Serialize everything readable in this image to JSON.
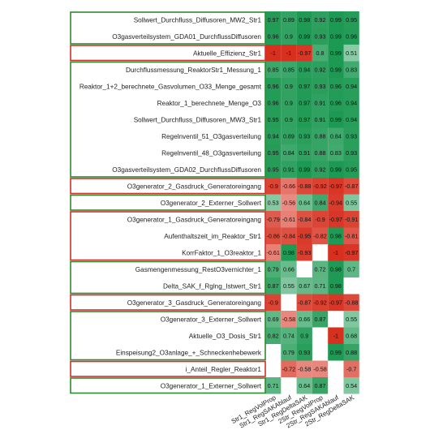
{
  "chart_data": {
    "type": "heatmap",
    "title": "",
    "xlabel": "",
    "ylabel": "",
    "color_scale": {
      "min": -1,
      "max": 1,
      "negative": "#d7301f",
      "zero": "#ffffff",
      "positive": "#1a9850"
    },
    "columns": [
      "Str1_RegVolProp",
      "Str1_RegSAKAblauf",
      "Str1_RegDeltaSAK",
      "2Str_RegVolProp",
      "2Str_RegSAKAblauf",
      "2Str_RegDeltaSAK"
    ],
    "rows": [
      "Sollwert_Durchfluss_Diffusoren_MW2_Str1",
      "O3gasverteilsystem_GDA01_DurchflussDiffusoren",
      "Aktuelle_Effizienz_Str1",
      "Durchflussmessung_ReaktorStr1_Messung_1",
      "Reaktor_1+2_berechnete_Gasvolumen_O33_Menge_gesamt",
      "Reaktor_1_berechnete_Menge_O3",
      "Sollwert_Durchfluss_Diffusoren_MW3_Str1",
      "Regelnventil_51_O3gasverteilung",
      "Regelnventil_48_O3gasverteilung",
      "O3gasverteilsystem_GDA02_DurchflussDiffusoren",
      "O3generator_2_Gasdruck_Generatoreingang",
      "O3generator_2_Externer_Sollwert",
      "O3generator_1_Gasdruck_Generatoreingang",
      "Aufenthaltszeit_im_Reaktor_Str1",
      "KorrFaktor_1_O3reaktor_1",
      "Gasmengenmessung_RestO3vernichter_1",
      "Delta_SAK_f_Rglng_Istwert_Str1",
      "O3generator_3_Gasdruck_Generatoreingang",
      "O3generator_3_Externer_Sollwert",
      "Aktuelle_O3_Dosis_Str1",
      "Einspeisung2_O3anlage_+_Schneckenhebewerk",
      "i_Anteil_Regler_Reaktor1",
      "O3generator_1_Externer_Sollwert"
    ],
    "values": [
      [
        0.97,
        0.89,
        0.98,
        0.92,
        0.99,
        0.95
      ],
      [
        0.96,
        0.9,
        0.99,
        0.93,
        0.99,
        0.96
      ],
      [
        -1,
        -1,
        -0.97,
        0.8,
        0.99,
        0.51
      ],
      [
        0.85,
        0.85,
        0.94,
        0.92,
        0.99,
        0.83
      ],
      [
        0.96,
        0.9,
        0.97,
        0.93,
        0.96,
        0.94
      ],
      [
        0.96,
        0.9,
        0.97,
        0.91,
        0.96,
        0.94
      ],
      [
        0.95,
        0.9,
        0.97,
        0.91,
        0.99,
        0.94
      ],
      [
        0.94,
        0.89,
        0.93,
        0.88,
        0.84,
        0.93
      ],
      [
        0.95,
        0.84,
        0.91,
        0.88,
        0.83,
        0.93
      ],
      [
        0.95,
        0.91,
        0.99,
        0.92,
        0.99,
        0.95
      ],
      [
        -0.9,
        -0.66,
        -0.88,
        -0.92,
        -0.97,
        -0.87
      ],
      [
        0.53,
        -0.56,
        0.64,
        0.84,
        -0.94,
        0.55
      ],
      [
        -0.79,
        -0.61,
        -0.84,
        -0.9,
        -0.97,
        -0.91
      ],
      [
        -0.86,
        -0.84,
        -0.95,
        -0.82,
        0.98,
        -0.81
      ],
      [
        -0.61,
        0.98,
        -0.93,
        null,
        -1,
        -0.97
      ],
      [
        0.79,
        0.66,
        null,
        0.72,
        0.98,
        0.7
      ],
      [
        0.87,
        0.55,
        0.67,
        0.71,
        0.98,
        null
      ],
      [
        -0.9,
        null,
        -0.87,
        -0.92,
        -0.97,
        -0.88
      ],
      [
        0.69,
        -0.58,
        0.66,
        0.87,
        null,
        0.55
      ],
      [
        0.82,
        0.74,
        0.9,
        null,
        -1,
        0.68
      ],
      [
        null,
        0.79,
        0.93,
        null,
        0.99,
        0.88
      ],
      [
        null,
        -0.72,
        -0.58,
        -0.58,
        null,
        -0.7
      ],
      [
        0.71,
        null,
        0.64,
        0.87,
        null,
        0.54
      ]
    ],
    "row_groups": [
      {
        "rows": [
          0,
          1
        ],
        "color": "#2e8b2e"
      },
      {
        "rows": [
          2,
          2
        ],
        "color": "#d03030"
      },
      {
        "rows": [
          3,
          9
        ],
        "color": "#2e8b2e"
      },
      {
        "rows": [
          10,
          10
        ],
        "color": "#d03030"
      },
      {
        "rows": [
          11,
          11
        ],
        "color": "#2e8b2e"
      },
      {
        "rows": [
          12,
          14
        ],
        "color": "#d03030"
      },
      {
        "rows": [
          15,
          16
        ],
        "color": "#2e8b2e"
      },
      {
        "rows": [
          17,
          17
        ],
        "color": "#d03030"
      },
      {
        "rows": [
          18,
          20
        ],
        "color": "#2e8b2e"
      },
      {
        "rows": [
          21,
          21
        ],
        "color": "#d03030"
      },
      {
        "rows": [
          22,
          22
        ],
        "color": "#2e8b2e"
      }
    ]
  }
}
